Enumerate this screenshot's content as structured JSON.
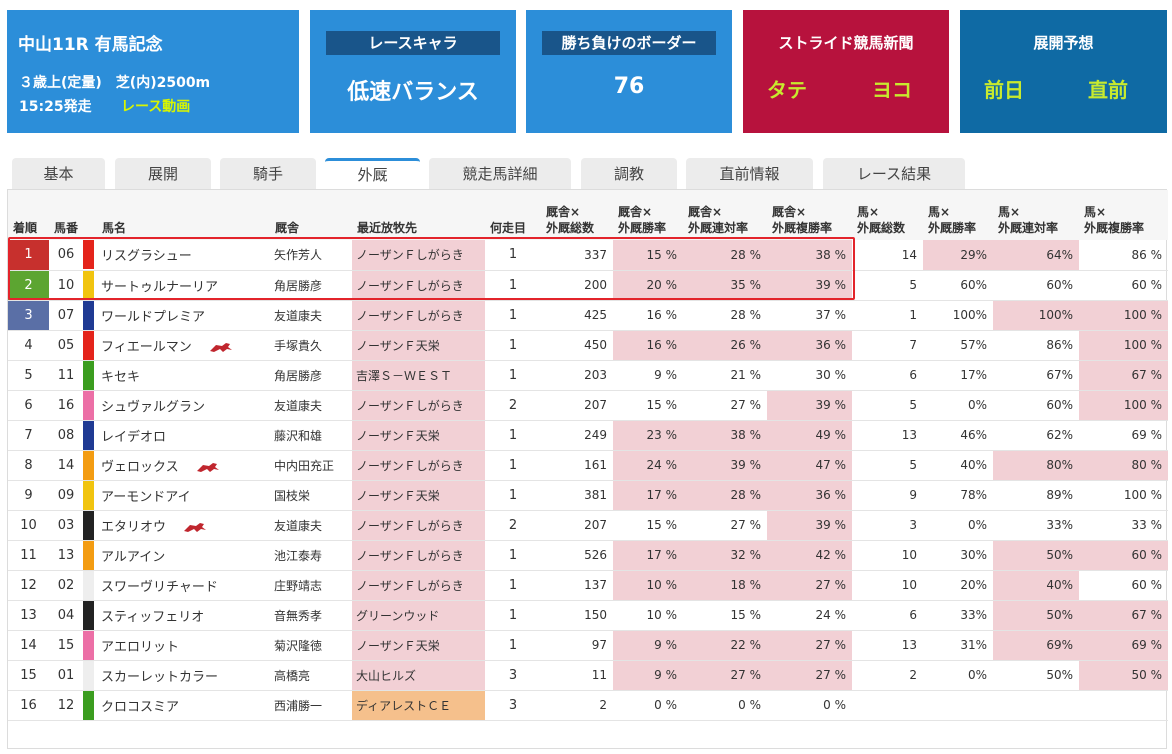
{
  "header": {
    "race": {
      "title": "中山11R 有馬記念",
      "conditions": "３歳上(定量)　芝(内)2500m",
      "start_time": "15:25発走",
      "video_link": "レース動画"
    },
    "race_character": {
      "label": "レースキャラ",
      "value": "低速バランス"
    },
    "border": {
      "label": "勝ち負けのボーダー",
      "value": "76"
    },
    "stride": {
      "title": "ストライド競馬新聞",
      "left": "タテ",
      "right": "ヨコ"
    },
    "forecast": {
      "title": "展開予想",
      "left": "前日",
      "right": "直前"
    }
  },
  "tabs": [
    {
      "label": "基本",
      "active": false
    },
    {
      "label": "展開",
      "active": false
    },
    {
      "label": "騎手",
      "active": false
    },
    {
      "label": "外厩",
      "active": true
    },
    {
      "label": "競走馬詳細",
      "active": false
    },
    {
      "label": "調教",
      "active": false
    },
    {
      "label": "直前情報",
      "active": false
    },
    {
      "label": "レース結果",
      "active": false
    }
  ],
  "table": {
    "headers": [
      "着順",
      "馬番",
      "",
      "馬名",
      "厩舎",
      "最近放牧先",
      "何走目",
      "厩舎×\n外厩総数",
      "厩舎×\n外厩勝率",
      "厩舎×\n外厩連対率",
      "厩舎×\n外厩複勝率",
      "馬×\n外厩総数",
      "馬×\n外厩勝率",
      "馬×\n外厩連対率",
      "馬×\n外厩複勝率"
    ],
    "rank_colors": {
      "1": "#c7302d",
      "2": "#5ca531",
      "3": "#5a6fa6"
    },
    "rows": [
      {
        "rank": "1",
        "num": "06",
        "color": "#e4241b",
        "name": "リスグラシュー",
        "icon": "",
        "stable": "矢作芳人",
        "farm": "ノーザンＦしがらき",
        "run": "1",
        "s_total": "337",
        "s_win": "15 %",
        "s_rentai": "28 %",
        "s_fuku": "38 %",
        "h_total": "14",
        "h_win": "29%",
        "h_rentai": "64%",
        "h_fuku": "86 %",
        "hl": [
          1,
          1,
          1,
          1,
          1,
          0,
          1
        ]
      },
      {
        "rank": "2",
        "num": "10",
        "color": "#f1c40f",
        "name": "サートゥルナーリア",
        "icon": "",
        "stable": "角居勝彦",
        "farm": "ノーザンＦしがらき",
        "run": "1",
        "s_total": "200",
        "s_win": "20 %",
        "s_rentai": "35 %",
        "s_fuku": "39 %",
        "h_total": "5",
        "h_win": "60%",
        "h_rentai": "60%",
        "h_fuku": "60 %",
        "hl": [
          1,
          1,
          1,
          0,
          0,
          0,
          0
        ]
      },
      {
        "rank": "3",
        "num": "07",
        "color": "#1f3a93",
        "name": "ワールドプレミア",
        "icon": "",
        "stable": "友道康夫",
        "farm": "ノーザンＦしがらき",
        "run": "1",
        "s_total": "425",
        "s_win": "16 %",
        "s_rentai": "28 %",
        "s_fuku": "37 %",
        "h_total": "1",
        "h_win": "100%",
        "h_rentai": "100%",
        "h_fuku": "100 %",
        "hl": [
          0,
          0,
          0,
          0,
          1,
          1,
          1
        ]
      },
      {
        "rank": "4",
        "num": "05",
        "color": "#e4241b",
        "name": "フィエールマン",
        "icon": "horse-icon",
        "stable": "手塚貴久",
        "farm": "ノーザンＦ天栄",
        "run": "1",
        "s_total": "450",
        "s_win": "16 %",
        "s_rentai": "26 %",
        "s_fuku": "36 %",
        "h_total": "7",
        "h_win": "57%",
        "h_rentai": "86%",
        "h_fuku": "100 %",
        "hl": [
          1,
          1,
          1,
          0,
          0,
          1,
          1
        ]
      },
      {
        "rank": "5",
        "num": "11",
        "color": "#3b9d1f",
        "name": "キセキ",
        "icon": "",
        "stable": "角居勝彦",
        "farm": "吉澤Ｓ－ＷＥＳＴ",
        "run": "1",
        "s_total": "203",
        "s_win": "9 %",
        "s_rentai": "21 %",
        "s_fuku": "30 %",
        "h_total": "6",
        "h_win": "17%",
        "h_rentai": "67%",
        "h_fuku": "67 %",
        "hl": [
          0,
          0,
          0,
          0,
          0,
          1,
          1
        ]
      },
      {
        "rank": "6",
        "num": "16",
        "color": "#ec6fa6",
        "name": "シュヴァルグラン",
        "icon": "",
        "stable": "友道康夫",
        "farm": "ノーザンＦしがらき",
        "run": "2",
        "s_total": "207",
        "s_win": "15 %",
        "s_rentai": "27 %",
        "s_fuku": "39 %",
        "h_total": "5",
        "h_win": "0%",
        "h_rentai": "60%",
        "h_fuku": "100 %",
        "hl": [
          0,
          0,
          1,
          0,
          0,
          1,
          1
        ]
      },
      {
        "rank": "7",
        "num": "08",
        "color": "#1f3a93",
        "name": "レイデオロ",
        "icon": "",
        "stable": "藤沢和雄",
        "farm": "ノーザンＦ天栄",
        "run": "1",
        "s_total": "249",
        "s_win": "23 %",
        "s_rentai": "38 %",
        "s_fuku": "49 %",
        "h_total": "13",
        "h_win": "46%",
        "h_rentai": "62%",
        "h_fuku": "69 %",
        "hl": [
          1,
          1,
          1,
          0,
          0,
          0,
          1
        ]
      },
      {
        "rank": "8",
        "num": "14",
        "color": "#f39c12",
        "name": "ヴェロックス",
        "icon": "horse-icon",
        "stable": "中内田充正",
        "farm": "ノーザンＦしがらき",
        "run": "1",
        "s_total": "161",
        "s_win": "24 %",
        "s_rentai": "39 %",
        "s_fuku": "47 %",
        "h_total": "5",
        "h_win": "40%",
        "h_rentai": "80%",
        "h_fuku": "80 %",
        "hl": [
          1,
          1,
          1,
          0,
          1,
          1,
          1
        ]
      },
      {
        "rank": "9",
        "num": "09",
        "color": "#f1c40f",
        "name": "アーモンドアイ",
        "icon": "",
        "stable": "国枝栄",
        "farm": "ノーザンＦ天栄",
        "run": "1",
        "s_total": "381",
        "s_win": "17 %",
        "s_rentai": "28 %",
        "s_fuku": "36 %",
        "h_total": "9",
        "h_win": "78%",
        "h_rentai": "89%",
        "h_fuku": "100 %",
        "hl": [
          1,
          1,
          1,
          0,
          0,
          0,
          1
        ]
      },
      {
        "rank": "10",
        "num": "03",
        "color": "#222222",
        "name": "エタリオウ",
        "icon": "horse-icon",
        "stable": "友道康夫",
        "farm": "ノーザンＦしがらき",
        "run": "2",
        "s_total": "207",
        "s_win": "15 %",
        "s_rentai": "27 %",
        "s_fuku": "39 %",
        "h_total": "3",
        "h_win": "0%",
        "h_rentai": "33%",
        "h_fuku": "33 %",
        "hl": [
          0,
          0,
          1,
          0,
          0,
          0,
          0
        ]
      },
      {
        "rank": "11",
        "num": "13",
        "color": "#f39c12",
        "name": "アルアイン",
        "icon": "",
        "stable": "池江泰寿",
        "farm": "ノーザンＦしがらき",
        "run": "1",
        "s_total": "526",
        "s_win": "17 %",
        "s_rentai": "32 %",
        "s_fuku": "42 %",
        "h_total": "10",
        "h_win": "30%",
        "h_rentai": "50%",
        "h_fuku": "60 %",
        "hl": [
          1,
          1,
          1,
          0,
          1,
          1,
          1
        ]
      },
      {
        "rank": "12",
        "num": "02",
        "color": "#eeeeee",
        "name": "スワーヴリチャード",
        "icon": "",
        "stable": "庄野靖志",
        "farm": "ノーザンＦしがらき",
        "run": "1",
        "s_total": "137",
        "s_win": "10 %",
        "s_rentai": "18 %",
        "s_fuku": "27 %",
        "h_total": "10",
        "h_win": "20%",
        "h_rentai": "40%",
        "h_fuku": "60 %",
        "hl": [
          1,
          1,
          1,
          0,
          1,
          0,
          1
        ]
      },
      {
        "rank": "13",
        "num": "04",
        "color": "#222222",
        "name": "スティッフェリオ",
        "icon": "",
        "stable": "音無秀孝",
        "farm": "グリーンウッド",
        "run": "1",
        "s_total": "150",
        "s_win": "10 %",
        "s_rentai": "15 %",
        "s_fuku": "24 %",
        "h_total": "6",
        "h_win": "33%",
        "h_rentai": "50%",
        "h_fuku": "67 %",
        "hl": [
          0,
          0,
          0,
          0,
          1,
          1,
          1
        ]
      },
      {
        "rank": "14",
        "num": "15",
        "color": "#ec6fa6",
        "name": "アエロリット",
        "icon": "",
        "stable": "菊沢隆徳",
        "farm": "ノーザンＦ天栄",
        "run": "1",
        "s_total": "97",
        "s_win": "9 %",
        "s_rentai": "22 %",
        "s_fuku": "27 %",
        "h_total": "13",
        "h_win": "31%",
        "h_rentai": "69%",
        "h_fuku": "69 %",
        "hl": [
          1,
          1,
          1,
          0,
          1,
          1,
          1
        ]
      },
      {
        "rank": "15",
        "num": "01",
        "color": "#eeeeee",
        "name": "スカーレットカラー",
        "icon": "",
        "stable": "高橋亮",
        "farm": "大山ヒルズ",
        "run": "3",
        "s_total": "11",
        "s_win": "9 %",
        "s_rentai": "27 %",
        "s_fuku": "27 %",
        "h_total": "2",
        "h_win": "0%",
        "h_rentai": "50%",
        "h_fuku": "50 %",
        "hl": [
          1,
          1,
          1,
          0,
          0,
          1,
          1
        ]
      },
      {
        "rank": "16",
        "num": "12",
        "color": "#3b9d1f",
        "name": "クロコスミア",
        "icon": "",
        "stable": "西浦勝一",
        "farm": "ディアレストＣＥ",
        "run": "3",
        "s_total": "2",
        "s_win": "0 %",
        "s_rentai": "0 %",
        "s_fuku": "0 %",
        "h_total": "",
        "h_win": "",
        "h_rentai": "",
        "h_fuku": "",
        "hl": [
          0,
          0,
          0,
          0,
          0,
          0,
          0
        ],
        "farm_style": "orange"
      }
    ]
  }
}
